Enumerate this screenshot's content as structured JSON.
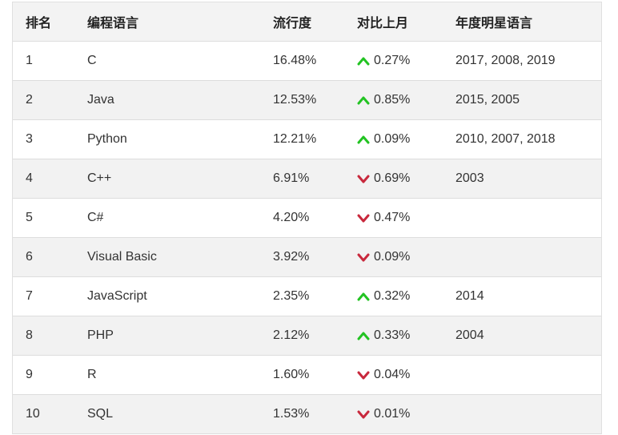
{
  "header": {
    "rank": "排名",
    "language": "编程语言",
    "popularity": "流行度",
    "change": "对比上月",
    "star_years": "年度明星语言"
  },
  "colors": {
    "up": "#22c322",
    "down": "#c8283c"
  },
  "rows": [
    {
      "rank": "1",
      "language": "C",
      "popularity": "16.48%",
      "direction": "up",
      "change": "0.27%",
      "star_years": "2017, 2008, 2019"
    },
    {
      "rank": "2",
      "language": "Java",
      "popularity": "12.53%",
      "direction": "up",
      "change": "0.85%",
      "star_years": "2015, 2005"
    },
    {
      "rank": "3",
      "language": "Python",
      "popularity": "12.21%",
      "direction": "up",
      "change": "0.09%",
      "star_years": "2010, 2007, 2018"
    },
    {
      "rank": "4",
      "language": "C++",
      "popularity": "6.91%",
      "direction": "down",
      "change": "0.69%",
      "star_years": "2003"
    },
    {
      "rank": "5",
      "language": "C#",
      "popularity": "4.20%",
      "direction": "down",
      "change": "0.47%",
      "star_years": ""
    },
    {
      "rank": "6",
      "language": "Visual Basic",
      "popularity": "3.92%",
      "direction": "down",
      "change": "0.09%",
      "star_years": ""
    },
    {
      "rank": "7",
      "language": "JavaScript",
      "popularity": "2.35%",
      "direction": "up",
      "change": "0.32%",
      "star_years": "2014"
    },
    {
      "rank": "8",
      "language": "PHP",
      "popularity": "2.12%",
      "direction": "up",
      "change": "0.33%",
      "star_years": "2004"
    },
    {
      "rank": "9",
      "language": "R",
      "popularity": "1.60%",
      "direction": "down",
      "change": "0.04%",
      "star_years": ""
    },
    {
      "rank": "10",
      "language": "SQL",
      "popularity": "1.53%",
      "direction": "down",
      "change": "0.01%",
      "star_years": ""
    }
  ]
}
